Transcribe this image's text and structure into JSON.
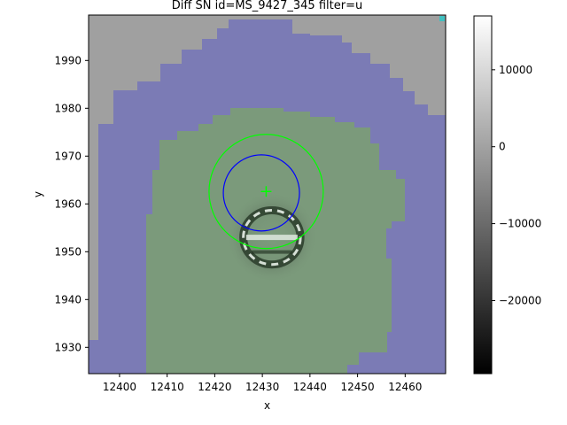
{
  "chart_data": {
    "type": "heatmap",
    "title": "Diff SN id=MS_9427_345 filter=u",
    "xlabel": "x",
    "ylabel": "y",
    "xlim": [
      12393.5,
      12468.5
    ],
    "ylim": [
      1924.5,
      1999.5
    ],
    "xticks": [
      12400,
      12410,
      12420,
      12430,
      12440,
      12450,
      12460
    ],
    "yticks": [
      1930,
      1940,
      1950,
      1960,
      1970,
      1980,
      1990
    ],
    "colorbar": {
      "range": [
        -29500,
        17000
      ],
      "ticks": [
        10000,
        0,
        -10000,
        -20000
      ],
      "tick_labels": [
        "10000",
        "0",
        "−10000",
        "−20000"
      ],
      "colormap": "gray"
    },
    "regions": {
      "background_color": "#a0a0a0",
      "outer_mask_color": "#7b7bb5",
      "inner_mask_color": "#7b9a7b",
      "outer_mask_extent": {
        "x": [
          12395,
          12468.5
        ],
        "y": [
          1924.5,
          1996
        ]
      },
      "inner_mask_extent": {
        "x": [
          12405,
          12442
        ],
        "y": [
          1924.5,
          1978
        ]
      }
    },
    "source_residual": {
      "center": [
        12432,
        1953
      ],
      "radius": 6,
      "note": "dipole ring residual"
    },
    "markers": {
      "center": {
        "x": 12430.8,
        "y": 1962.6,
        "symbol": "+",
        "color": "#00ff00"
      },
      "circles": [
        {
          "x": 12430.8,
          "y": 1962.6,
          "r": 12,
          "color": "#00ff00"
        },
        {
          "x": 12429.8,
          "y": 1962.3,
          "r": 8,
          "color": "#0000ff"
        }
      ]
    }
  }
}
